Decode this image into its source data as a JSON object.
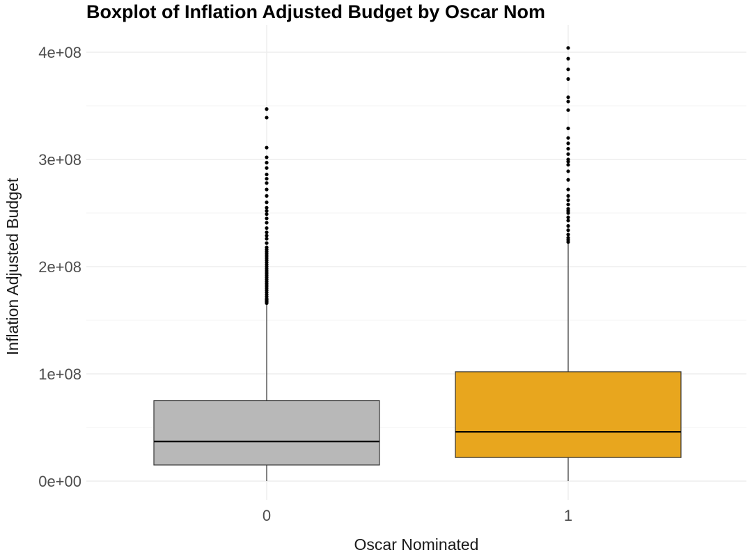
{
  "chart_data": {
    "type": "boxplot",
    "title": "Boxplot of Inflation Adjusted Budget by Oscar Nom",
    "xlabel": "Oscar Nominated",
    "ylabel": "Inflation Adjusted Budget",
    "categories": [
      "0",
      "1"
    ],
    "ylim": [
      -7000000,
      410000000
    ],
    "y_ticks": [
      0,
      100000000,
      200000000,
      300000000,
      400000000
    ],
    "y_tick_labels": [
      "0e+00",
      "1e+08",
      "2e+08",
      "3e+08",
      "4e+08"
    ],
    "grid": true,
    "legend": "none",
    "boxes": [
      {
        "category": "0",
        "whisker_low": 0,
        "q1": 15000000,
        "median": 37000000,
        "q3": 75000000,
        "whisker_high": 165000000,
        "fill": "#b8b8b8",
        "outliers": [
          166000000,
          167000000,
          168000000,
          169000000,
          170000000,
          172000000,
          174000000,
          176000000,
          178000000,
          180000000,
          182000000,
          184000000,
          186000000,
          188000000,
          190000000,
          192000000,
          194000000,
          196000000,
          198000000,
          200000000,
          202000000,
          204000000,
          206000000,
          208000000,
          210000000,
          212000000,
          214000000,
          216000000,
          218000000,
          222000000,
          226000000,
          229000000,
          232000000,
          236000000,
          241000000,
          245000000,
          249000000,
          252000000,
          255000000,
          260000000,
          266000000,
          272000000,
          278000000,
          282000000,
          286000000,
          292000000,
          297000000,
          302000000,
          311000000,
          339000000,
          347000000
        ]
      },
      {
        "category": "1",
        "whisker_low": 0,
        "q1": 22000000,
        "median": 46000000,
        "q3": 102000000,
        "whisker_high": 222000000,
        "fill": "#e8a61e",
        "outliers": [
          223000000,
          225000000,
          227000000,
          230000000,
          234000000,
          238000000,
          243000000,
          246000000,
          250000000,
          252000000,
          254000000,
          258000000,
          262000000,
          266000000,
          272000000,
          281000000,
          289000000,
          295000000,
          298000000,
          300000000,
          305000000,
          310000000,
          315000000,
          320000000,
          329000000,
          346000000,
          354000000,
          358000000,
          375000000,
          384000000,
          394000000,
          404000000
        ]
      }
    ]
  }
}
